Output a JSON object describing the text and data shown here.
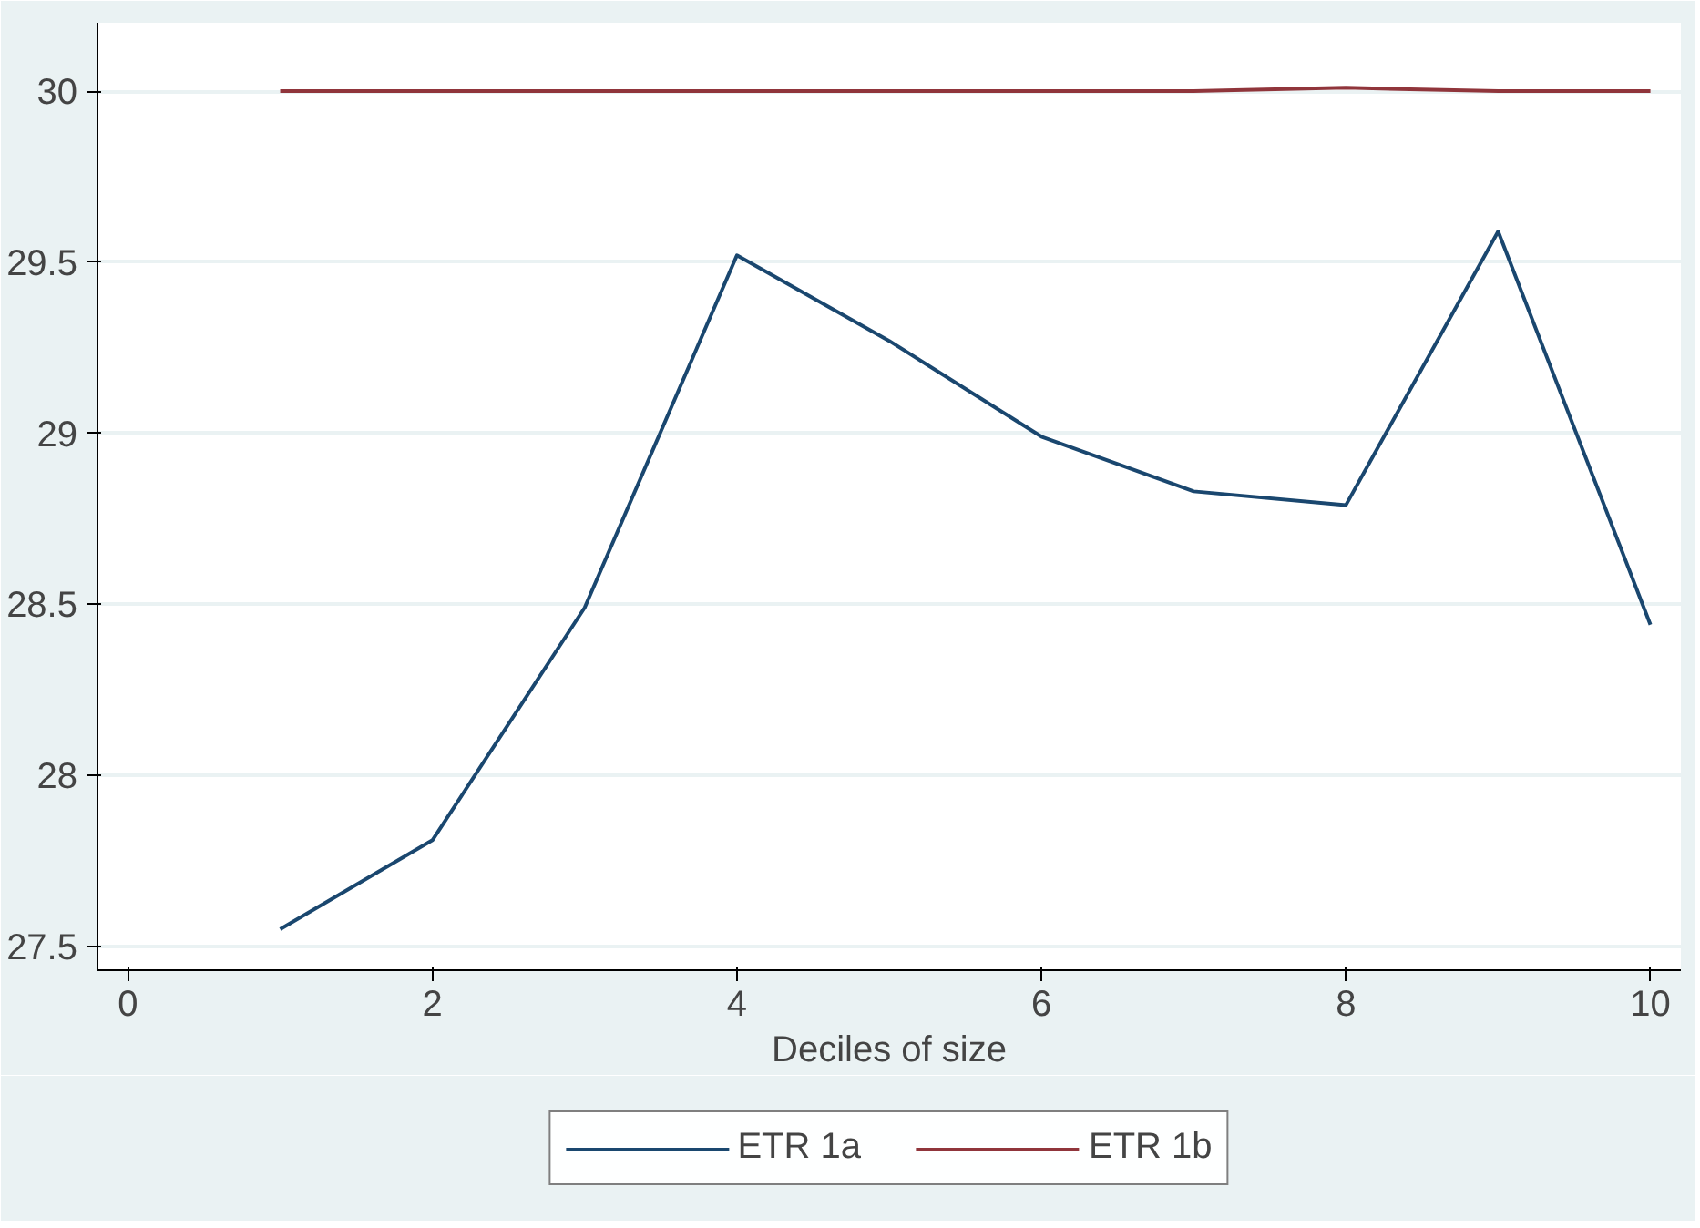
{
  "chart_data": {
    "type": "line",
    "xlabel": "Deciles of size",
    "x": [
      1,
      2,
      3,
      4,
      5,
      6,
      7,
      8,
      9,
      10
    ],
    "series": [
      {
        "name": "ETR 1a",
        "color": "#1a476f",
        "values": [
          27.55,
          27.81,
          28.49,
          29.52,
          29.27,
          28.99,
          28.83,
          28.79,
          29.59,
          28.44
        ]
      },
      {
        "name": "ETR 1b",
        "color": "#90353b",
        "values": [
          30,
          30,
          30,
          30,
          30,
          30,
          30,
          30.01,
          30,
          30
        ]
      }
    ],
    "xlim": [
      -0.2,
      10.2
    ],
    "ylim": [
      27.43,
      30.2
    ],
    "xticks": [
      0,
      2,
      4,
      6,
      8,
      10
    ],
    "yticks": [
      27.5,
      28,
      28.5,
      29,
      29.5,
      30
    ],
    "grid": "y",
    "legend": "bottom",
    "marker": "none",
    "line_style": "solid"
  }
}
